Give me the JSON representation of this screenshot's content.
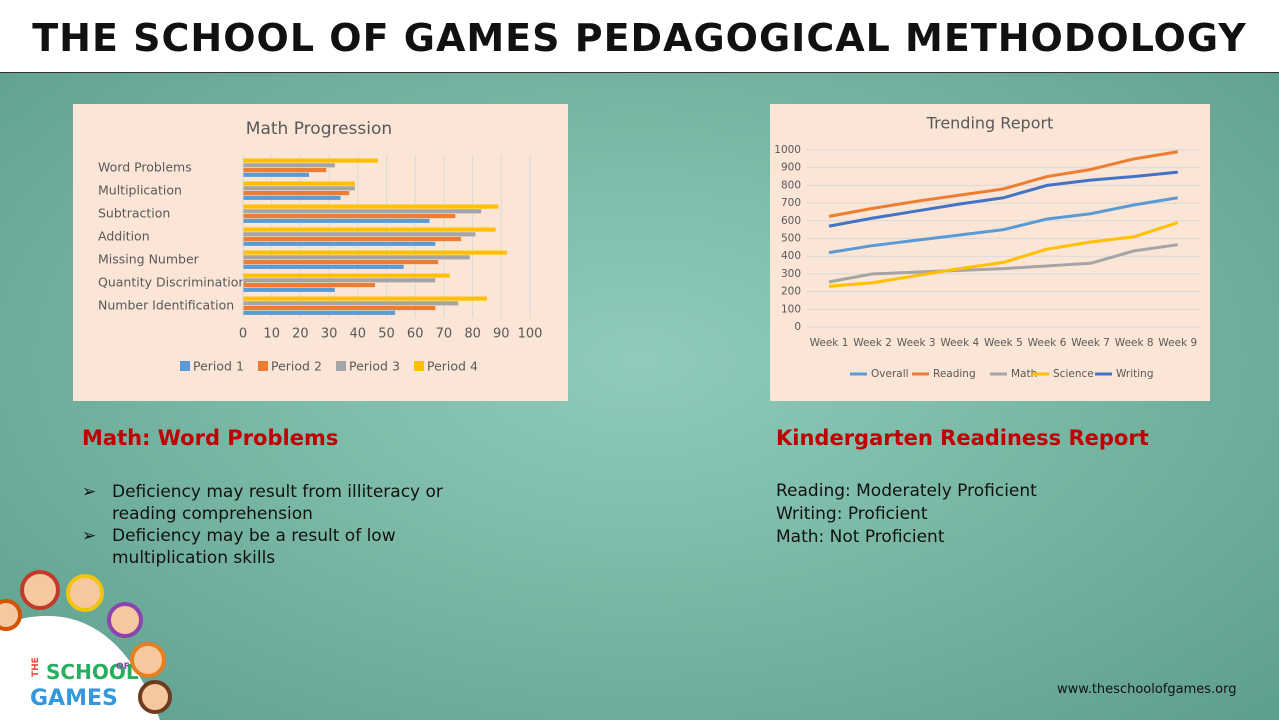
{
  "title": "THE SCHOOL OF GAMES PEDAGOGICAL METHODOLOGY",
  "chart_data": [
    {
      "type": "bar",
      "orientation": "horizontal",
      "title": "Math Progression",
      "categories": [
        "Word Problems",
        "Multiplication",
        "Subtraction",
        "Addition",
        "Missing Number",
        "Quantity Discrimination",
        "Number Identification"
      ],
      "series": [
        {
          "name": "Period 1",
          "color": "#5b9bd5",
          "values": [
            23,
            34,
            65,
            67,
            56,
            32,
            53
          ]
        },
        {
          "name": "Period 2",
          "color": "#ed7d31",
          "values": [
            29,
            37,
            74,
            76,
            68,
            46,
            67
          ]
        },
        {
          "name": "Period 3",
          "color": "#a5a5a5",
          "values": [
            32,
            39,
            83,
            81,
            79,
            67,
            75
          ]
        },
        {
          "name": "Period 4",
          "color": "#ffc000",
          "values": [
            47,
            39,
            89,
            88,
            92,
            72,
            85
          ]
        }
      ],
      "xlim": [
        0,
        100
      ],
      "xticks": [
        0,
        10,
        20,
        30,
        40,
        50,
        60,
        70,
        80,
        90,
        100
      ],
      "grid": true,
      "legend": "bottom"
    },
    {
      "type": "line",
      "title": "Trending Report",
      "categories": [
        "Week 1",
        "Week 2",
        "Week 3",
        "Week 4",
        "Week 5",
        "Week 6",
        "Week 7",
        "Week 8",
        "Week 9"
      ],
      "series": [
        {
          "name": "Overall",
          "color": "#5b9bd5",
          "values": [
            420,
            460,
            490,
            520,
            550,
            610,
            640,
            690,
            730
          ]
        },
        {
          "name": "Reading",
          "color": "#ed7d31",
          "values": [
            625,
            670,
            710,
            745,
            780,
            850,
            890,
            950,
            990
          ]
        },
        {
          "name": "Math",
          "color": "#a5a5a5",
          "values": [
            255,
            300,
            310,
            320,
            330,
            345,
            360,
            430,
            465
          ]
        },
        {
          "name": "Science",
          "color": "#ffc000",
          "values": [
            230,
            250,
            290,
            330,
            365,
            440,
            480,
            510,
            590
          ]
        },
        {
          "name": "Writing",
          "color": "#4472c4",
          "values": [
            570,
            615,
            655,
            695,
            730,
            800,
            830,
            850,
            875
          ]
        }
      ],
      "ylim": [
        0,
        1000
      ],
      "yticks": [
        0,
        100,
        200,
        300,
        400,
        500,
        600,
        700,
        800,
        900,
        1000
      ],
      "grid": true,
      "legend": "bottom"
    }
  ],
  "left_section": {
    "heading": "Math: Word Problems",
    "bullets": [
      "Deficiency may result from illiteracy or reading comprehension",
      "Deficiency may be a result of low multiplication skills"
    ]
  },
  "right_section": {
    "heading": "Kindergarten Readiness Report",
    "lines": [
      "Reading:  Moderately Proficient",
      "Writing: Proficient",
      "Math: Not Proficient"
    ]
  },
  "logo": [
    "THE",
    "SCHOOL",
    "OF",
    "GAMES"
  ],
  "footer": "www.theschoolofgames.org"
}
